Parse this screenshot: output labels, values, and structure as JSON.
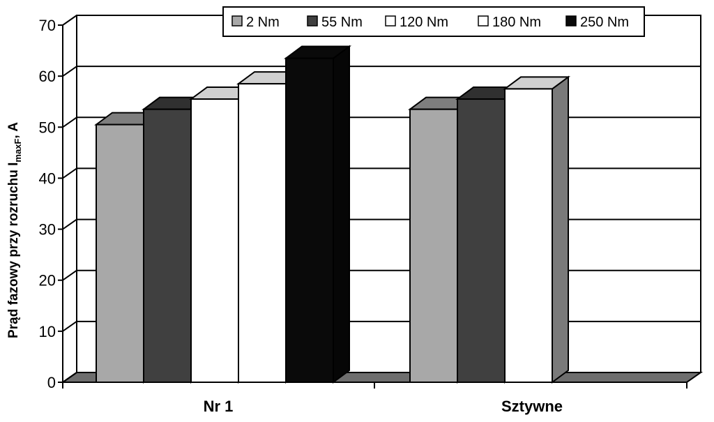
{
  "chart_data": {
    "type": "bar",
    "title": "",
    "xlabel": "",
    "ylabel": "Prąd fazowy przy rozruchu I",
    "ylabel_subscript": "maxF",
    "ylabel_suffix": ", A",
    "ylim": [
      0,
      70
    ],
    "yticks": [
      "0",
      "10",
      "20",
      "30",
      "40",
      "50",
      "60",
      "70"
    ],
    "grid": true,
    "legend_position": "top",
    "categories": [
      "Nr 1",
      "Sztywne"
    ],
    "series": [
      {
        "name": "2 Nm",
        "color": "#a8a8a8",
        "values": [
          50.5,
          53.5
        ]
      },
      {
        "name": "55 Nm",
        "color": "#404040",
        "values": [
          53.5,
          55.5
        ]
      },
      {
        "name": "120 Nm",
        "color": "#ffffff",
        "values": [
          55.5,
          57.5
        ]
      },
      {
        "name": "180 Nm",
        "color": "#ffffff",
        "values": [
          58.5,
          null
        ]
      },
      {
        "name": "250 Nm",
        "color": "#0a0a0a",
        "values": [
          63.5,
          null
        ]
      }
    ]
  }
}
